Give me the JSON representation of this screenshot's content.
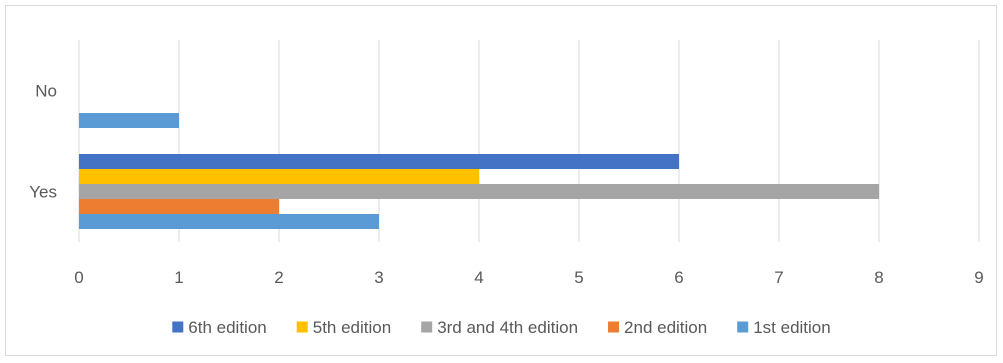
{
  "chart_data": {
    "type": "bar",
    "orientation": "horizontal",
    "categories": [
      "No",
      "Yes"
    ],
    "series": [
      {
        "name": "6th edition",
        "color": "#4472c4",
        "values": [
          null,
          6
        ]
      },
      {
        "name": "5th edition",
        "color": "#ffc000",
        "values": [
          null,
          4
        ]
      },
      {
        "name": "3rd and 4th edition",
        "color": "#a5a5a5",
        "values": [
          null,
          8
        ]
      },
      {
        "name": "2nd edition",
        "color": "#ed7d31",
        "values": [
          null,
          2
        ]
      },
      {
        "name": "1st edition",
        "color": "#5b9bd5",
        "values": [
          1,
          3
        ]
      }
    ],
    "xlim": [
      0,
      9
    ],
    "xticks": [
      "0",
      "1",
      "2",
      "3",
      "4",
      "5",
      "6",
      "7",
      "8",
      "9"
    ],
    "grid": true,
    "legend_position": "bottom"
  }
}
